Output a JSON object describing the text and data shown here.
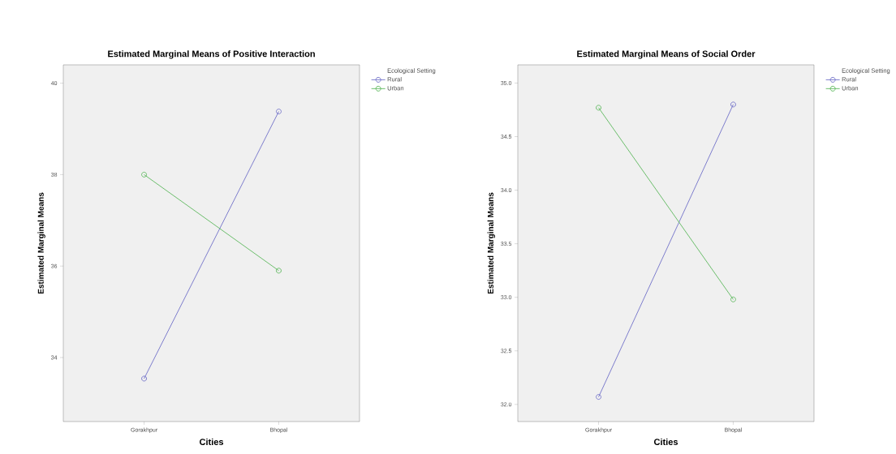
{
  "chart_data": [
    {
      "type": "line",
      "title": "Estimated Marginal Means of Positive Interaction",
      "xlabel": "Cities",
      "ylabel": "Estimated Marginal Means",
      "legend_title": "Ecological Setting",
      "legend": "right",
      "marker": "circle",
      "categories": [
        "Gorakhpur",
        "Bhopal"
      ],
      "series": [
        {
          "name": "Rural",
          "color": "#7070c8",
          "values": [
            33.54,
            39.38
          ]
        },
        {
          "name": "Urban",
          "color": "#5cb85c",
          "values": [
            38.0,
            35.9
          ]
        }
      ],
      "ylim": [
        32.6,
        40.4
      ],
      "yticks": [
        34,
        36,
        38,
        40
      ]
    },
    {
      "type": "line",
      "title": "Estimated Marginal Means of Social Order",
      "xlabel": "Cities",
      "ylabel": "Estimated Marginal Means",
      "legend_title": "Ecological Setting",
      "legend": "right",
      "marker": "circle",
      "categories": [
        "Gorakhpur",
        "Bhopal"
      ],
      "series": [
        {
          "name": "Rural",
          "color": "#7070c8",
          "values": [
            32.07,
            34.8
          ]
        },
        {
          "name": "Urban",
          "color": "#5cb85c",
          "values": [
            34.77,
            32.98
          ]
        }
      ],
      "ylim": [
        31.84,
        35.17
      ],
      "yticks": [
        {
          "value": 32,
          "label": "32.0"
        },
        {
          "value": 32.5,
          "label": "32.5"
        },
        {
          "value": 33,
          "label": "33.0"
        },
        {
          "value": 33.5,
          "label": "33.5"
        },
        {
          "value": 34,
          "label": "34.0"
        },
        {
          "value": 34.5,
          "label": "34.5"
        },
        {
          "value": 35,
          "label": "35.0"
        }
      ]
    }
  ]
}
